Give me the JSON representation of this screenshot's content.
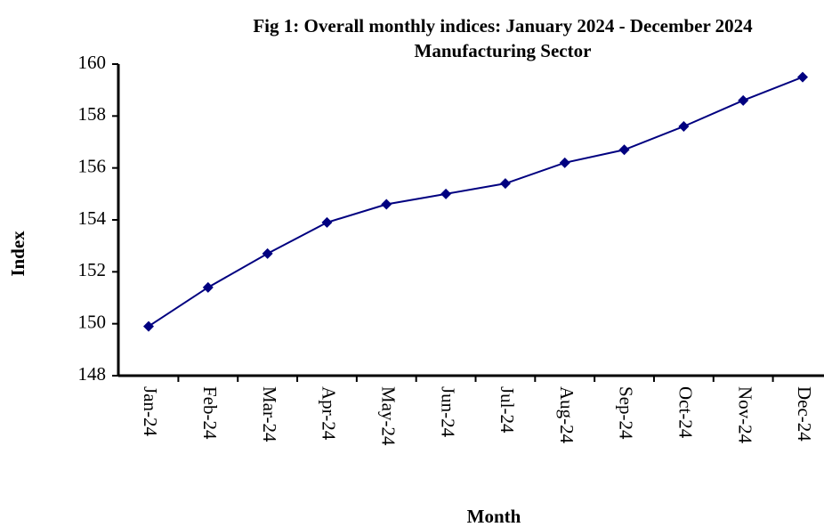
{
  "chart_data": {
    "type": "line",
    "title": "Fig 1: Overall monthly indices: January 2024 - December 2024",
    "subtitle": "Manufacturing Sector",
    "x_label": "Month",
    "y_label": "Index",
    "categories": [
      "Jan-24",
      "Feb-24",
      "Mar-24",
      "Apr-24",
      "May-24",
      "Jun-24",
      "Jul-24",
      "Aug-24",
      "Sep-24",
      "Oct-24",
      "Nov-24",
      "Dec-24"
    ],
    "series": [
      {
        "name": "Manufacturing Sector",
        "color": "#000080",
        "values": [
          149.9,
          151.4,
          152.7,
          153.9,
          154.6,
          155.0,
          155.4,
          156.2,
          156.7,
          157.6,
          158.6,
          159.5
        ]
      }
    ],
    "ylim": [
      148,
      160
    ],
    "yticks": [
      148,
      150,
      152,
      154,
      156,
      158,
      160
    ],
    "grid": false
  }
}
